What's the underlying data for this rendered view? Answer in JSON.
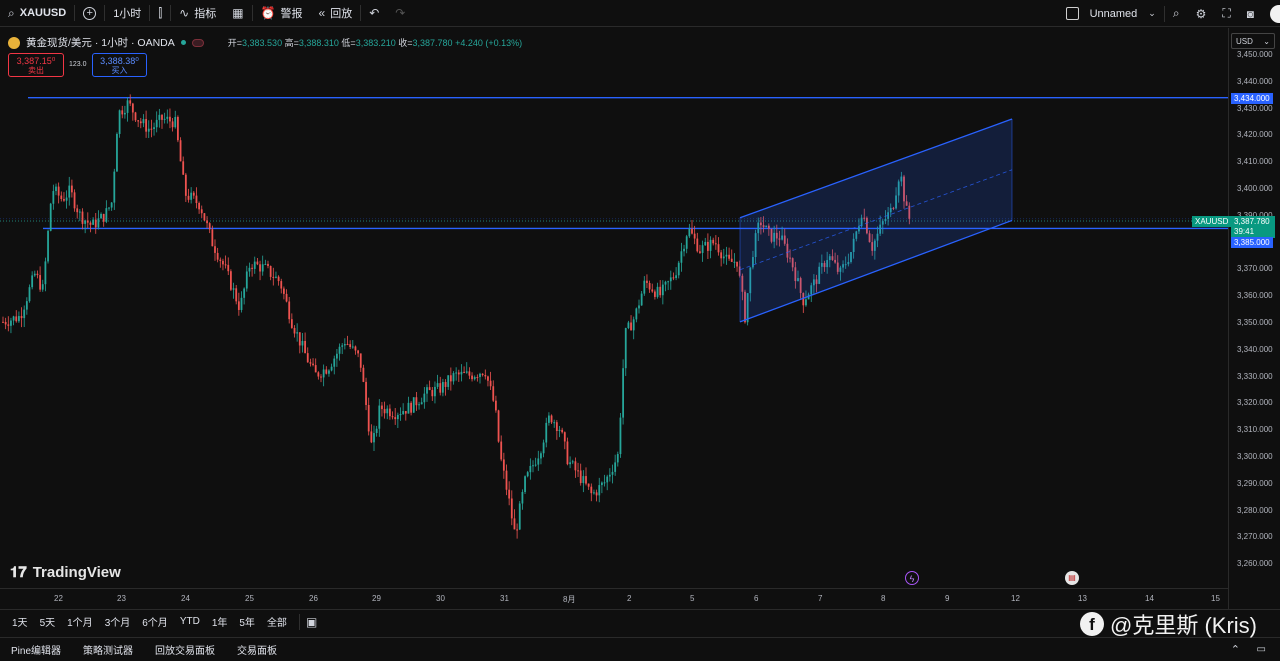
{
  "toolbar": {
    "symbol": "XAUUSD",
    "interval": "1小时",
    "indicators_label": "指标",
    "alerts_label": "警报",
    "replay_label": "回放",
    "layout_name": "Unnamed"
  },
  "legend": {
    "title": "黄金现货/美元 · 1小时 · OANDA",
    "open_label": "开=",
    "open": "3,383.530",
    "high_label": "高=",
    "high": "3,388.310",
    "low_label": "低=",
    "low": "3,383.210",
    "close_label": "收=",
    "close": "3,387.780",
    "change": "+4.240 (+0.13%)"
  },
  "trade": {
    "sell_price": "3,387.15⁰",
    "sell_label": "卖出",
    "spread": "123.0",
    "buy_price": "3,388.38⁰",
    "buy_label": "买入"
  },
  "watermark": "TradingView",
  "currency": "USD",
  "price_axis": [
    "3,450.000",
    "3,440.000",
    "3,430.000",
    "3,420.000",
    "3,410.000",
    "3,400.000",
    "3,390.000",
    "3,380.000",
    "3,370.000",
    "3,360.000",
    "3,350.000",
    "3,340.000",
    "3,330.000",
    "3,320.000",
    "3,310.000",
    "3,300.000",
    "3,290.000",
    "3,280.000",
    "3,270.000",
    "3,260.000"
  ],
  "price_tags": {
    "resistance": "3,434.000",
    "symbol_tag": "XAUUSD",
    "last_price": "3,387.780",
    "countdown": "39:41",
    "support": "3,385.000"
  },
  "time_axis": [
    "22",
    "23",
    "24",
    "25",
    "26",
    "29",
    "30",
    "31",
    "8月",
    "2",
    "5",
    "6",
    "7",
    "8",
    "9",
    "12",
    "13",
    "14",
    "15"
  ],
  "ranges": [
    "1天",
    "5天",
    "1个月",
    "3个月",
    "6个月",
    "YTD",
    "1年",
    "5年",
    "全部"
  ],
  "bottom_tabs": [
    "Pine编辑器",
    "策略测试器",
    "回放交易面板",
    "交易面板"
  ],
  "social_mark": "@克里斯 (Kris)",
  "colors": {
    "up": "#26a69a",
    "down": "#ef5350",
    "line": "#2962ff",
    "background": "#0f0f0f"
  }
}
